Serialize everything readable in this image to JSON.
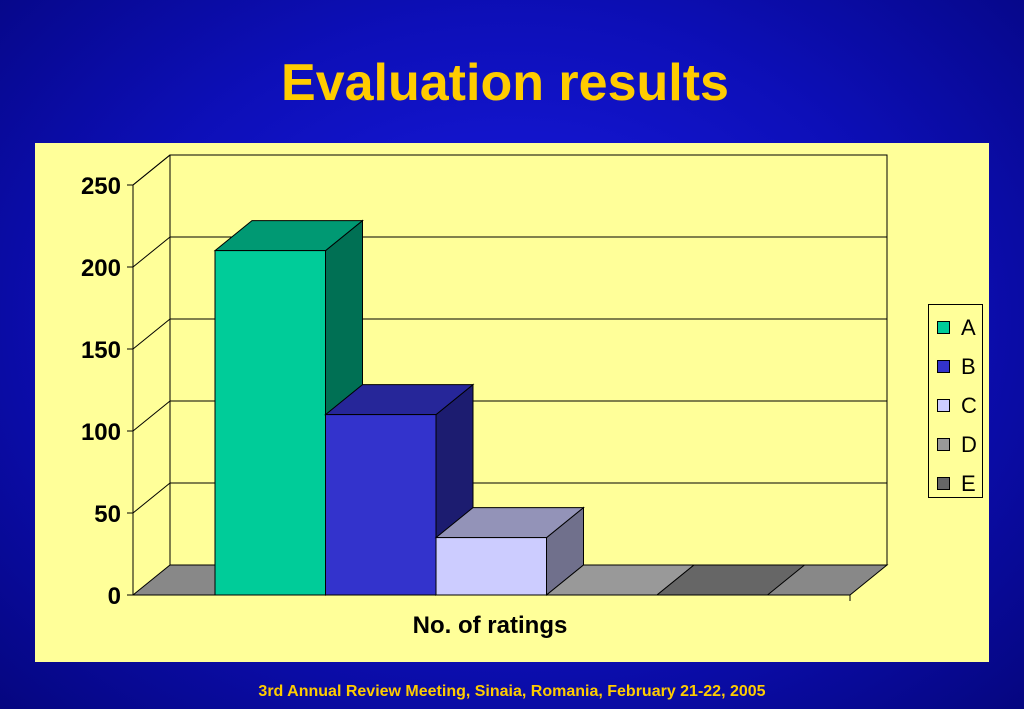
{
  "slide": {
    "title": "Evaluation results",
    "footer": "3rd Annual Review Meeting, Sinaia, Romania, February 21-22, 2005"
  },
  "chart_data": {
    "type": "bar",
    "title": "",
    "xlabel": "No. of ratings",
    "ylabel": "",
    "categories": [
      "No. of ratings"
    ],
    "ylim": [
      0,
      250
    ],
    "yticks": [
      0,
      50,
      100,
      150,
      200,
      250
    ],
    "series": [
      {
        "name": "A",
        "values": [
          210
        ],
        "color": "#00cc99"
      },
      {
        "name": "B",
        "values": [
          110
        ],
        "color": "#3333cc"
      },
      {
        "name": "C",
        "values": [
          35
        ],
        "color": "#ccccff"
      },
      {
        "name": "D",
        "values": [
          0
        ],
        "color": "#999999"
      },
      {
        "name": "E",
        "values": [
          0
        ],
        "color": "#666666"
      }
    ],
    "grid": true,
    "legend": "right",
    "style": "3d-column",
    "background": "#ffff99"
  }
}
